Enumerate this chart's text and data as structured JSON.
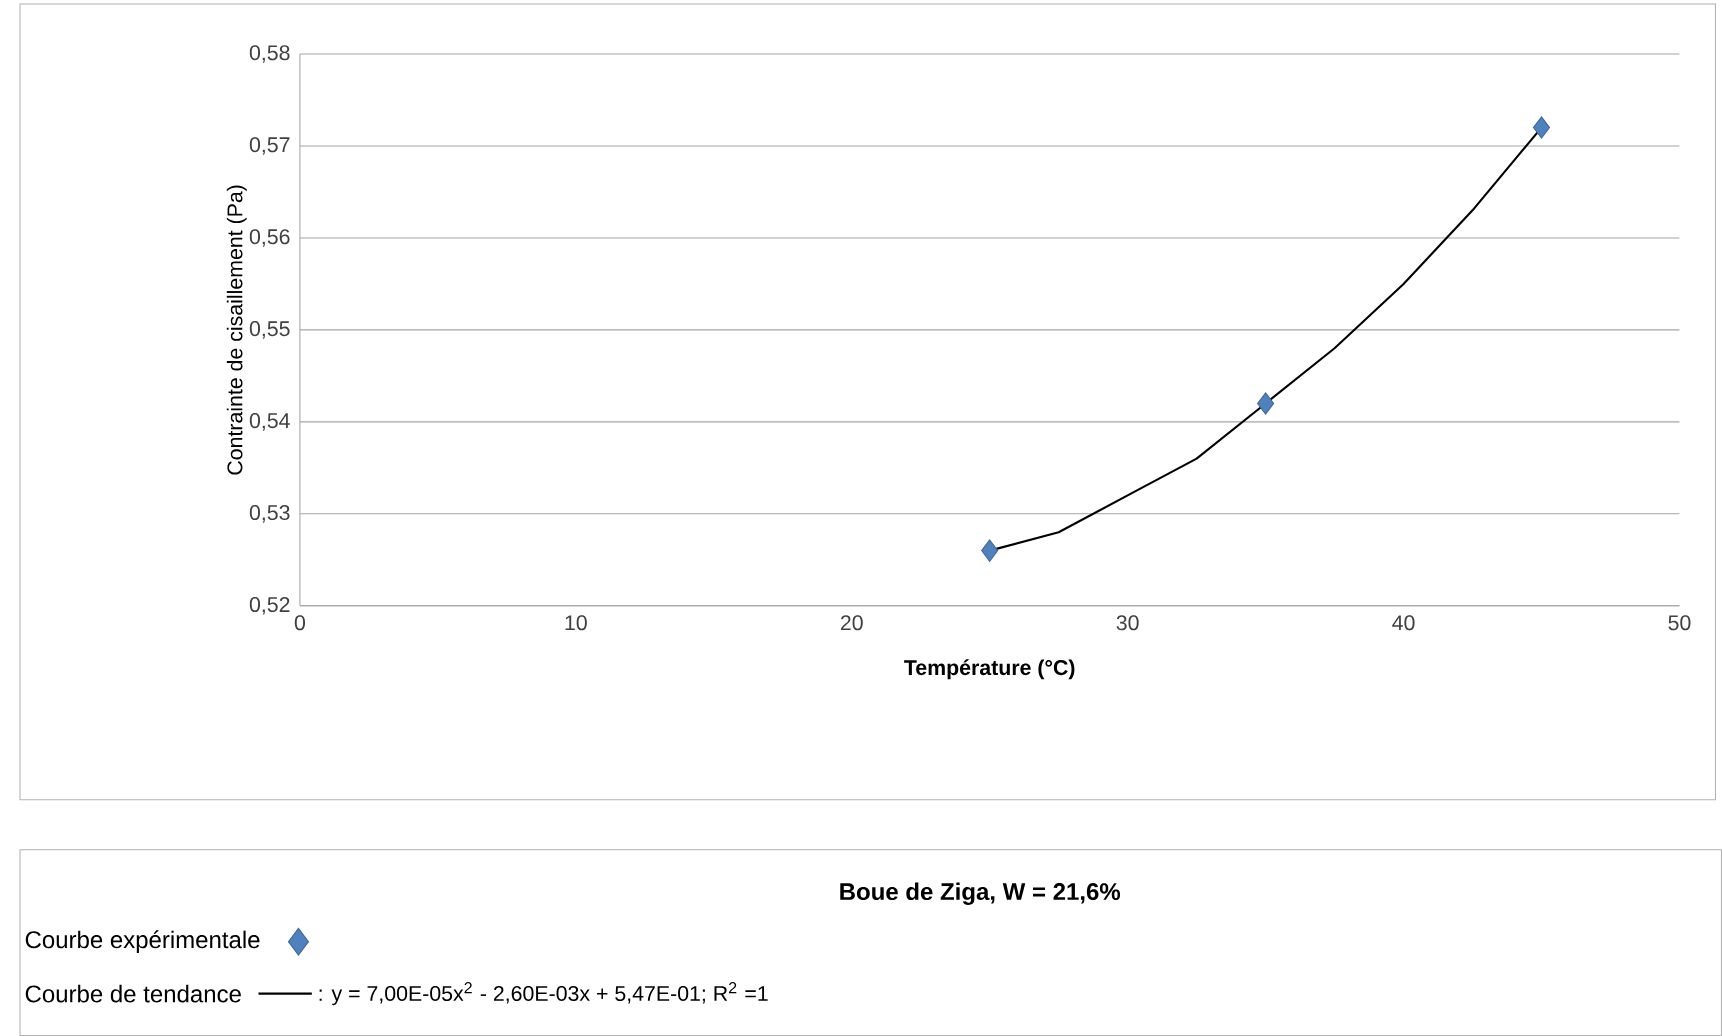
{
  "chart_data": {
    "type": "scatter",
    "xlabel": "Température (°C)",
    "ylabel": "Contrainte de cisaillement  (Pa)",
    "legend_title": "Boue de Ziga, W = 21,6%",
    "xlim": [
      0,
      50
    ],
    "xticks": [
      0,
      10,
      20,
      30,
      40,
      50
    ],
    "ylim": [
      0.52,
      0.58
    ],
    "yticks": [
      {
        "value": 0.52,
        "label": "0,52"
      },
      {
        "value": 0.53,
        "label": "0,53"
      },
      {
        "value": 0.54,
        "label": "0,54"
      },
      {
        "value": 0.55,
        "label": "0,55"
      },
      {
        "value": 0.56,
        "label": "0,56"
      },
      {
        "value": 0.57,
        "label": "0,57"
      },
      {
        "value": 0.58,
        "label": "0,58"
      }
    ],
    "grid": "y",
    "legend": "bottom",
    "series": [
      {
        "name": "Courbe expérimentale",
        "type": "scatter",
        "marker": "diamond",
        "color": "#4f81bd",
        "x": [
          25,
          35,
          45
        ],
        "values": [
          0.526,
          0.542,
          0.572
        ]
      },
      {
        "name": "Courbe de tendance",
        "type": "line",
        "marker": "none",
        "line_style": "solid",
        "color": "#000000",
        "x": [
          25,
          27.5,
          30,
          32.5,
          35,
          37.5,
          40,
          42.5,
          45
        ],
        "values": [
          0.526,
          0.528,
          0.532,
          0.536,
          0.542,
          0.548,
          0.555,
          0.563,
          0.572
        ]
      }
    ],
    "annotations": [
      ": y = 7,00E-05x$^{2}$ - 2,60E-03x  + 5,47E-01; R$^{2}$ =1"
    ]
  }
}
